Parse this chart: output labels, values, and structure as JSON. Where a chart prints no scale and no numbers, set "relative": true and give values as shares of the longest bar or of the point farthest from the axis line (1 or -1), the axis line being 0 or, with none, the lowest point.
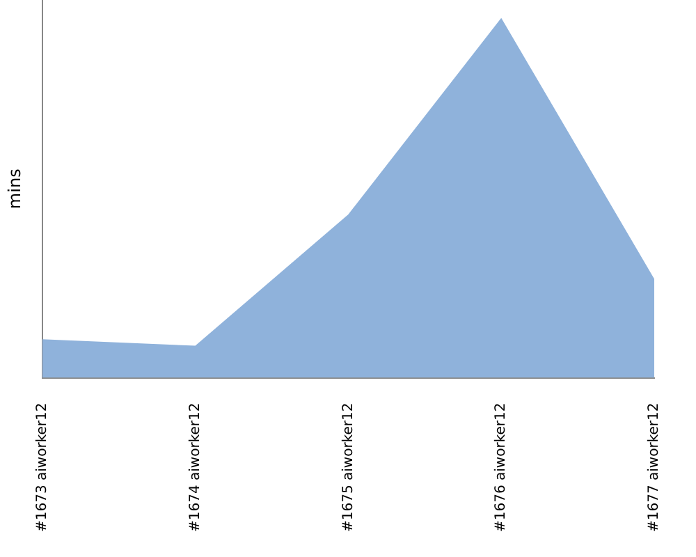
{
  "chart_data": {
    "type": "area",
    "ylabel": "mins",
    "relative": true,
    "categories": [
      "#1673 aiworker12",
      "#1674 aiworker12",
      "#1675 aiworker12",
      "#1676 aiworker12",
      "#1677 aiworker12"
    ],
    "series": [
      {
        "color": "#8fb2db",
        "values": [
          0.107,
          0.089,
          0.454,
          1,
          0.275
        ]
      }
    ],
    "grid": false,
    "legend": false,
    "marker": "none"
  }
}
